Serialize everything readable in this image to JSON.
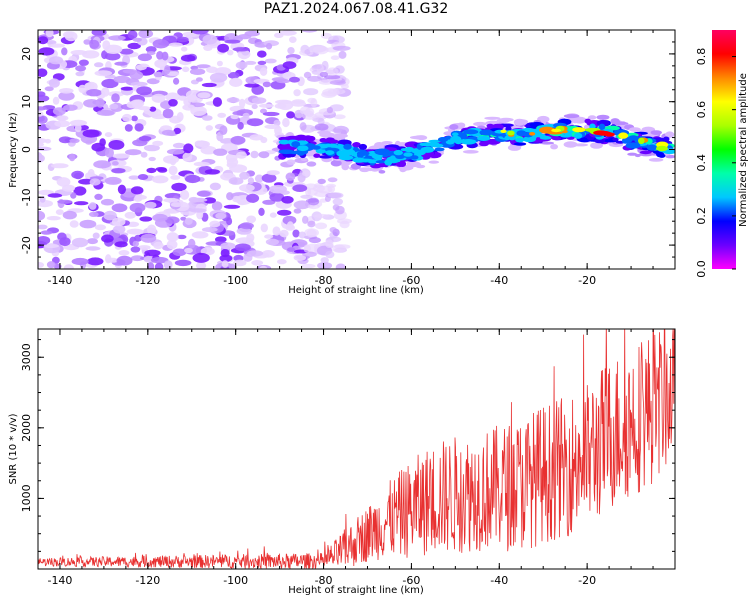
{
  "title": "PAZ1.2024.067.08.41.G32",
  "chart_data": [
    {
      "type": "heatmap",
      "xlabel": "Height of straight line (km)",
      "ylabel": "Frequency (Hz)",
      "xlim": [
        -145,
        0
      ],
      "ylim": [
        -25,
        25
      ],
      "xticks": [
        -140,
        -120,
        -100,
        -80,
        -60,
        -40,
        -20
      ],
      "yticks": [
        -20,
        -10,
        0,
        10,
        20
      ],
      "colorbar": {
        "label": "Normalized spectral amplitude",
        "range": [
          0.0,
          0.9
        ],
        "ticks": [
          0.0,
          0.2,
          0.4,
          0.6,
          0.8
        ],
        "colormap": [
          "#ff00ff",
          "#6a00ff",
          "#0000ff",
          "#00c8ff",
          "#00ffaa",
          "#00ff00",
          "#aaff00",
          "#ffff00",
          "#ff8800",
          "#ff0000",
          "#ff0060"
        ]
      },
      "ridge": {
        "x": [
          -90,
          -80,
          -75,
          -70,
          -65,
          -60,
          -55,
          -50,
          -45,
          -40,
          -35,
          -30,
          -25,
          -20,
          -15,
          -10,
          -5,
          -1
        ],
        "freq_hz": [
          0.5,
          0.5,
          -0.5,
          -1.5,
          -1.5,
          -1.0,
          0.5,
          2.0,
          3.0,
          3.5,
          3.0,
          3.5,
          4.0,
          4.0,
          3.5,
          2.0,
          1.0,
          0.0
        ]
      },
      "noise_region_x": [
        -145,
        -75
      ]
    },
    {
      "type": "line",
      "xlabel": "Height of straight line (km)",
      "ylabel": "SNR (10 * v/v)",
      "xlim": [
        -145,
        0
      ],
      "ylim": [
        0,
        3400
      ],
      "xticks": [
        -140,
        -120,
        -100,
        -80,
        -60,
        -40,
        -20
      ],
      "yticks": [
        1000,
        2000,
        3000
      ],
      "color": "#e83030",
      "envelope": {
        "x": [
          -145,
          -80,
          -75,
          -70,
          -65,
          -60,
          -55,
          -50,
          -45,
          -40,
          -35,
          -30,
          -25,
          -20,
          -15,
          -10,
          -5,
          -1
        ],
        "mean": [
          100,
          110,
          280,
          500,
          700,
          850,
          1000,
          1050,
          1100,
          1150,
          1200,
          1350,
          1450,
          1600,
          1900,
          2100,
          2300,
          2500
        ],
        "spread": [
          60,
          120,
          300,
          400,
          550,
          700,
          800,
          850,
          850,
          900,
          950,
          1000,
          1000,
          1050,
          1100,
          1100,
          1100,
          1000
        ]
      }
    }
  ]
}
